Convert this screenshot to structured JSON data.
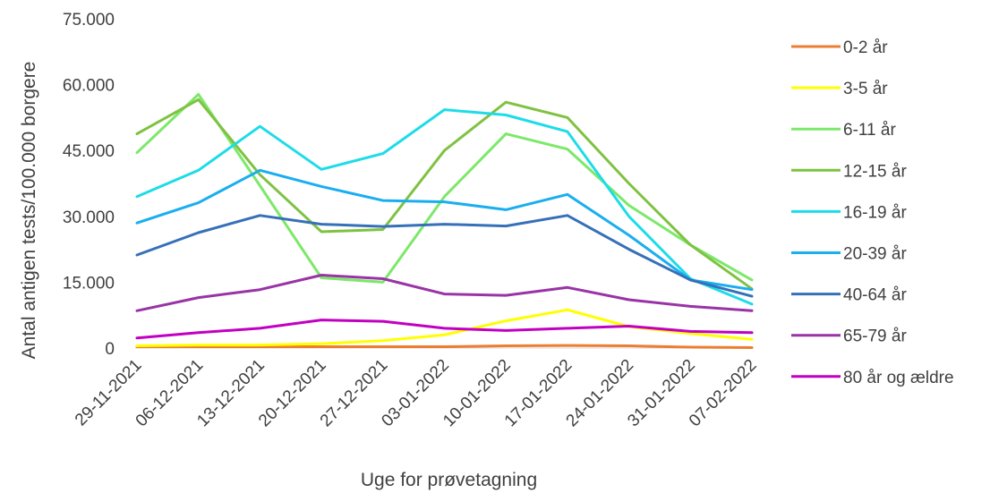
{
  "chart_data": {
    "type": "line",
    "title": "",
    "xlabel": "Uge for prøvetagning",
    "ylabel": "Antal antigen tests/100.000 borgere",
    "ylim": [
      0,
      75000
    ],
    "yticks": [
      0,
      15000,
      30000,
      45000,
      60000,
      75000
    ],
    "ytick_labels": [
      "0",
      "15.000",
      "30.000",
      "45.000",
      "60.000",
      "75.000"
    ],
    "grid": false,
    "legend_position": "right",
    "categories": [
      "29-11-2021",
      "06-12-2021",
      "13-12-2021",
      "20-12-2021",
      "27-12-2021",
      "03-01-2022",
      "10-01-2022",
      "17-01-2022",
      "24-01-2022",
      "31-01-2022",
      "07-02-2022"
    ],
    "series": [
      {
        "name": "0-2 år",
        "color": "#ED7D31",
        "values": [
          300,
          300,
          300,
          300,
          300,
          300,
          500,
          600,
          500,
          200,
          100
        ]
      },
      {
        "name": "3-5 år",
        "color": "#FFFF00",
        "values": [
          500,
          700,
          700,
          1000,
          1700,
          3000,
          6200,
          8700,
          4900,
          3300,
          2000
        ]
      },
      {
        "name": "6-11 år",
        "color": "#7CE86A",
        "values": [
          44500,
          57800,
          37000,
          16000,
          15000,
          34500,
          48800,
          45300,
          32500,
          23500,
          15500
        ]
      },
      {
        "name": "12-15 år",
        "color": "#7FC242",
        "values": [
          48800,
          56600,
          39500,
          26500,
          27000,
          45000,
          56000,
          52500,
          37500,
          23500,
          13500
        ]
      },
      {
        "name": "16-19 år",
        "color": "#1DDCE8",
        "values": [
          34500,
          40500,
          50500,
          40700,
          44300,
          54300,
          53100,
          49300,
          30000,
          15800,
          10000
        ]
      },
      {
        "name": "20-39 år",
        "color": "#1AAEF0",
        "values": [
          28500,
          33100,
          40500,
          36800,
          33600,
          33300,
          31500,
          35000,
          25700,
          15500,
          13300
        ]
      },
      {
        "name": "40-64 år",
        "color": "#3670B8",
        "values": [
          21200,
          26300,
          30200,
          28200,
          27700,
          28200,
          27800,
          30200,
          22500,
          15500,
          11800
        ]
      },
      {
        "name": "65-79 år",
        "color": "#9933A6",
        "values": [
          8500,
          11500,
          13300,
          16600,
          15800,
          12300,
          12000,
          13800,
          11000,
          9500,
          8500
        ]
      },
      {
        "name": "80 år og ældre",
        "color": "#C200C2",
        "values": [
          2300,
          3500,
          4500,
          6400,
          6100,
          4500,
          4000,
          4500,
          5000,
          3800,
          3500
        ]
      }
    ]
  }
}
